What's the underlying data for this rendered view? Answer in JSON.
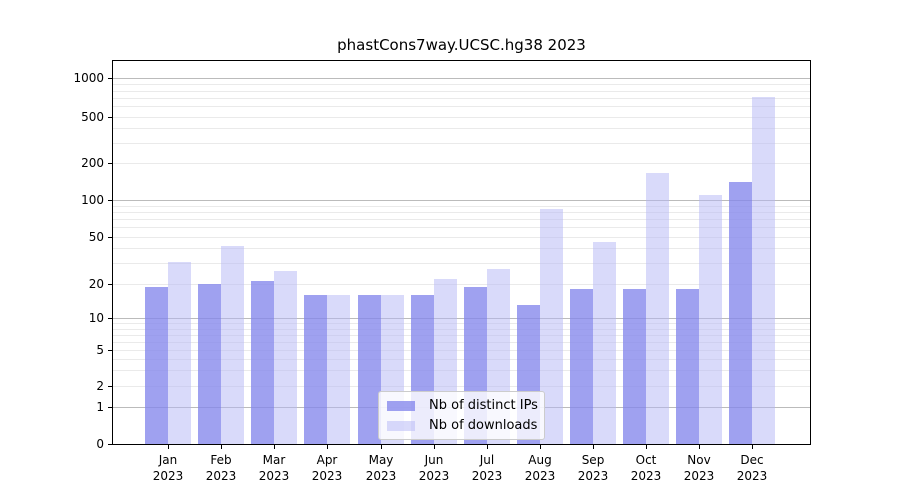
{
  "chart_data": {
    "type": "bar",
    "title": "phastCons7way.UCSC.hg38 2023",
    "categories": [
      {
        "month": "Jan",
        "year": "2023"
      },
      {
        "month": "Feb",
        "year": "2023"
      },
      {
        "month": "Mar",
        "year": "2023"
      },
      {
        "month": "Apr",
        "year": "2023"
      },
      {
        "month": "May",
        "year": "2023"
      },
      {
        "month": "Jun",
        "year": "2023"
      },
      {
        "month": "Jul",
        "year": "2023"
      },
      {
        "month": "Aug",
        "year": "2023"
      },
      {
        "month": "Sep",
        "year": "2023"
      },
      {
        "month": "Oct",
        "year": "2023"
      },
      {
        "month": "Nov",
        "year": "2023"
      },
      {
        "month": "Dec",
        "year": "2023"
      }
    ],
    "series": [
      {
        "name": "Nb of distinct IPs",
        "values": [
          19,
          20,
          21,
          16,
          16,
          16,
          19,
          13,
          18,
          18,
          18,
          140
        ]
      },
      {
        "name": "Nb of downloads",
        "values": [
          31,
          42,
          26,
          16,
          16,
          22,
          27,
          84,
          45,
          165,
          110,
          710
        ]
      }
    ],
    "yscale": "symlog",
    "yticks": [
      0,
      1,
      2,
      5,
      10,
      20,
      50,
      100,
      200,
      500,
      1000
    ],
    "yticklabels": [
      "0",
      "1",
      "2",
      "5",
      "10",
      "20",
      "50",
      "100",
      "200",
      "500",
      "1000"
    ],
    "ylim": [
      0,
      1400
    ],
    "xlabel": "",
    "ylabel": "",
    "grid": "horizontal major+minor",
    "legend_position": "lower center"
  },
  "colors": {
    "ips_bar": "#8486EC",
    "ips_bar_alpha": 0.78,
    "downloads_bar": "#B4B6F5",
    "downloads_bar_alpha": 0.5,
    "grid_major": "#BBBBBB",
    "grid_minor": "#EAEAEA",
    "axis": "#000000",
    "legend_border": "#CCCCCC"
  }
}
